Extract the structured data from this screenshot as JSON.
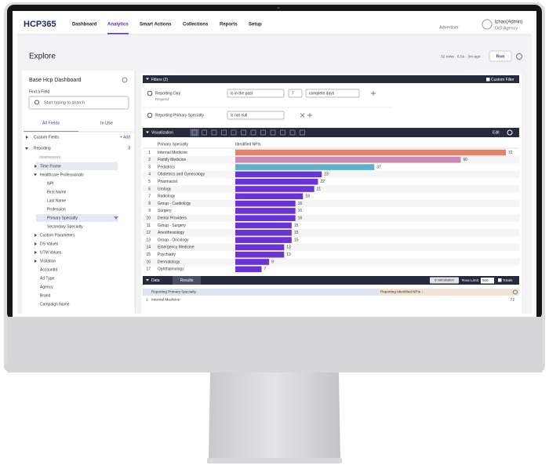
{
  "nav": {
    "logo": "HCP365",
    "items": [
      "Dashboard",
      "Analytics",
      "Smart Actions",
      "Collections",
      "Reports",
      "Setup"
    ],
    "active": "Analytics",
    "advertiser": "Advertiser",
    "user": "lchao(Admin)",
    "agency": "DID Agency"
  },
  "header": {
    "title": "Explore",
    "status": "32 rows · 6.5s · 3m ago",
    "run": "Run"
  },
  "sidebar": {
    "title": "Base Hcp Dashboard",
    "find_label": "Find a Field",
    "search_placeholder": "Start typing to search",
    "tabs": [
      "All Fields",
      "In Use"
    ],
    "custom_fields": "Custom Fields",
    "add": "+ Add",
    "group": "Reporting",
    "group_count": 3,
    "section": "DIMENSIONS",
    "fields": [
      {
        "label": "Time Frame",
        "expandable": true,
        "selected": true
      },
      {
        "label": "Healthcare Professionals",
        "children": [
          {
            "label": "NPI"
          },
          {
            "label": "First Name"
          },
          {
            "label": "Last Name"
          },
          {
            "label": "Profession"
          },
          {
            "label": "Primary Specialty",
            "selected": true
          },
          {
            "label": "Secondary Specialty"
          }
        ]
      },
      {
        "label": "Custom Parameters",
        "expandable": true
      },
      {
        "label": "DS Values",
        "expandable": true
      },
      {
        "label": "UTM Values",
        "expandable": true
      },
      {
        "label": "Visitation",
        "expandable": true
      },
      {
        "label": "AccountId"
      },
      {
        "label": "Ad Type"
      },
      {
        "label": "Agency"
      },
      {
        "label": "Brand"
      },
      {
        "label": "Campaign Name"
      }
    ]
  },
  "filters": {
    "title": "Filters (2)",
    "custom_filter": "Custom Filter",
    "rows": [
      {
        "field": "Reporting Day",
        "note": "Required",
        "operator": "is in the past",
        "value": 7,
        "unit": "complete days"
      },
      {
        "field": "Reporting Primary Specialty",
        "operator": "is not null"
      }
    ]
  },
  "visualization": {
    "title": "Visualization",
    "edit": "Edit",
    "type": "bar",
    "columns": [
      "Primary Specialty",
      "Identified NPIs"
    ],
    "row_numbers": [
      1,
      2,
      3,
      4,
      5,
      6,
      7,
      8,
      9,
      10,
      11,
      12,
      13,
      14,
      15,
      16,
      17
    ],
    "categories": [
      "Internal Medicine",
      "Family Medicine",
      "Pediatrics",
      "Obstetrics and Gynecology",
      "Pharmacist",
      "Urology",
      "Radiology",
      "Group - Cardiology",
      "Surgery",
      "Dental Providers",
      "Group - Surgery",
      "Anesthesiology",
      "Group - Oncology",
      "Emergency Medicine",
      "Psychiatry",
      "Dermatology",
      "Ophthalmology"
    ],
    "values": [
      72,
      60,
      37,
      23,
      22,
      21,
      18,
      16,
      16,
      16,
      15,
      15,
      15,
      13,
      13,
      9,
      7
    ],
    "colors": [
      "#e8806a",
      "#c98ab6",
      "#5fb0c9",
      "#6a33d6",
      "#6a33d6",
      "#6a33d6",
      "#6a33d6",
      "#6a33d6",
      "#6a33d6",
      "#6a33d6",
      "#6a33d6",
      "#6a33d6",
      "#6a33d6",
      "#6a33d6",
      "#6a33d6",
      "#6a33d6",
      "#6a33d6"
    ]
  },
  "data_panel": {
    "title": "Data",
    "tab": "Results",
    "calc": "d calculation",
    "row_limit_label": "Row Limit",
    "row_limit": 500,
    "totals": "Totals",
    "columns": [
      "Reporting Primary Specialty",
      "Reporting Identified NPIs ↓"
    ],
    "rows": [
      [
        1,
        "Internal Medicine",
        72
      ]
    ]
  }
}
